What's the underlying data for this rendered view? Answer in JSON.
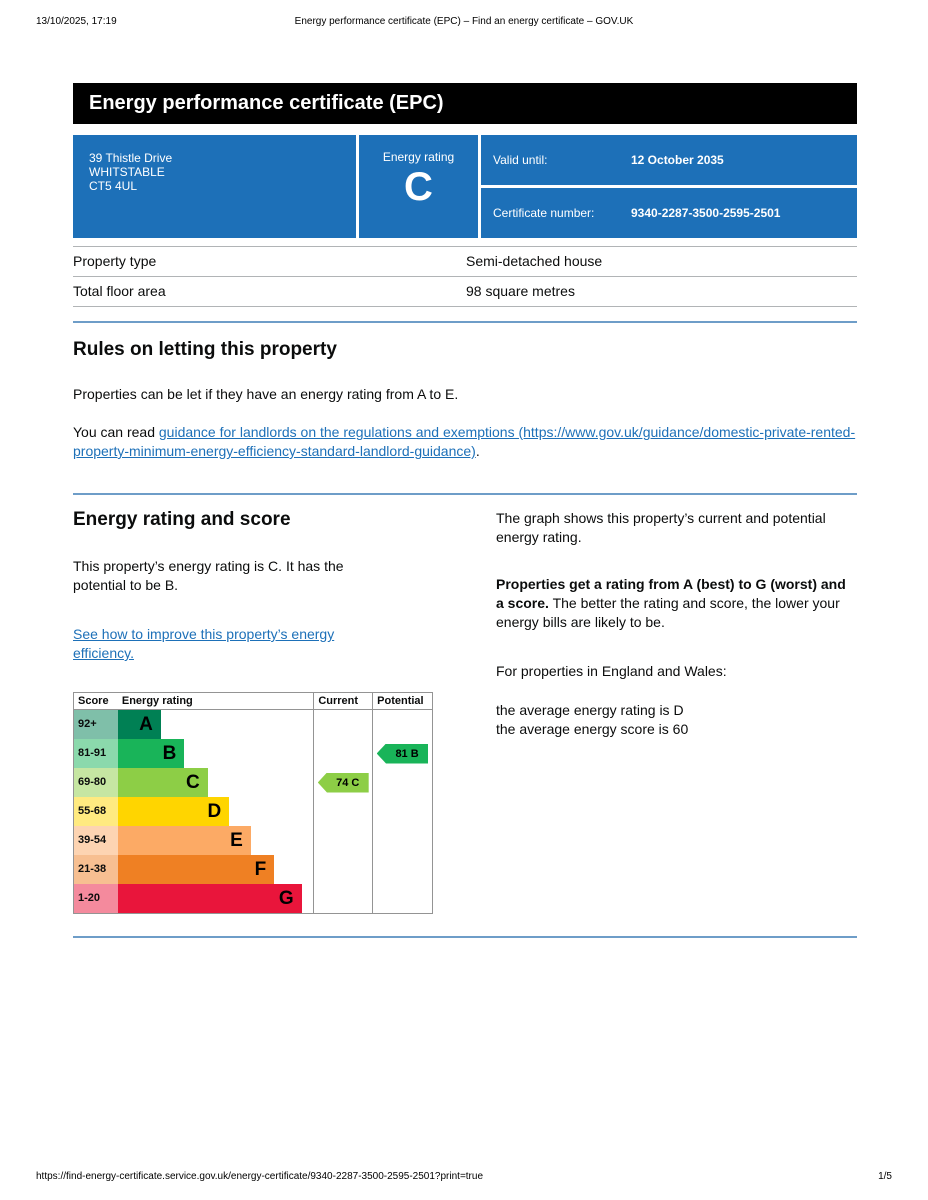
{
  "print_header": {
    "datetime": "13/10/2025, 17:19",
    "title": "Energy performance certificate (EPC) – Find an energy certificate – GOV.UK"
  },
  "banner": {
    "title": "Energy performance certificate (EPC)"
  },
  "summary_box": {
    "address_lines": [
      "39 Thistle Drive",
      "WHITSTABLE",
      "CT5 4UL"
    ],
    "rating_label": "Energy rating",
    "rating": "C",
    "valid_until_label": "Valid until:",
    "valid_until": "12 October 2035",
    "certificate_number_label": "Certificate number:",
    "certificate_number": "9340-2287-3500-2595-2501"
  },
  "property_details": {
    "rows": [
      {
        "label": "Property type",
        "value": "Semi-detached house"
      },
      {
        "label": "Total floor area",
        "value": "98 square metres"
      }
    ]
  },
  "rules_section": {
    "heading": "Rules on letting this property",
    "para1": "Properties can be let if they have an energy rating from A to E.",
    "para2_prefix": "You can read ",
    "link_text": "guidance for landlords on the regulations and exemptions (https://www.gov.uk/guidance/domestic-private-rented-property-minimum-energy-efficiency-standard-landlord-guidance)",
    "para2_suffix": "."
  },
  "rating_section": {
    "heading": "Energy rating and score",
    "para1": "This property’s energy rating is C. It has the potential to be B.",
    "improve_link": "See how to improve this property’s energy efficiency.",
    "right_para1": "The graph shows this property’s current and potential energy rating.",
    "right_para2_bold": "Properties get a rating from A (best) to G (worst) and a score.",
    "right_para2_rest": " The better the rating and score, the lower your energy bills are likely to be.",
    "right_para3": "For properties in England and Wales:",
    "right_para4_line1": "the average energy rating is D",
    "right_para4_line2": "the average energy score is 60"
  },
  "chart_data": {
    "type": "epc-rating-bands",
    "headers": [
      "Score",
      "Energy rating",
      "Current",
      "Potential"
    ],
    "bands": [
      {
        "score": "92+",
        "letter": "A",
        "color": "#008054",
        "score_bg": "#7fbfa9",
        "width_pct": 22
      },
      {
        "score": "81-91",
        "letter": "B",
        "color": "#19b459",
        "score_bg": "#8bd9ac",
        "width_pct": 34
      },
      {
        "score": "69-80",
        "letter": "C",
        "color": "#8dce46",
        "score_bg": "#c6e6a2",
        "width_pct": 46
      },
      {
        "score": "55-68",
        "letter": "D",
        "color": "#ffd500",
        "score_bg": "#ffea80",
        "width_pct": 57
      },
      {
        "score": "39-54",
        "letter": "E",
        "color": "#fcaa65",
        "score_bg": "#fdd4b2",
        "width_pct": 68
      },
      {
        "score": "21-38",
        "letter": "F",
        "color": "#ef8023",
        "score_bg": "#f7bf91",
        "width_pct": 80
      },
      {
        "score": "1-20",
        "letter": "G",
        "color": "#e9153b",
        "score_bg": "#f48a9d",
        "width_pct": 94
      }
    ],
    "current": {
      "label": "74 C",
      "band": "C",
      "score": 74,
      "color": "#8dce46",
      "row_index": 2
    },
    "potential": {
      "label": "81 B",
      "band": "B",
      "score": 81,
      "color": "#19b459",
      "row_index": 1
    }
  },
  "footer": {
    "url": "https://find-energy-certificate.service.gov.uk/energy-certificate/9340-2287-3500-2595-2501?print=true",
    "page": "1/5"
  },
  "colors": {
    "banner_bg": "#000000",
    "summary_bg": "#1d70b8",
    "link": "#1d70b8",
    "divider": "#6e9dc8"
  }
}
